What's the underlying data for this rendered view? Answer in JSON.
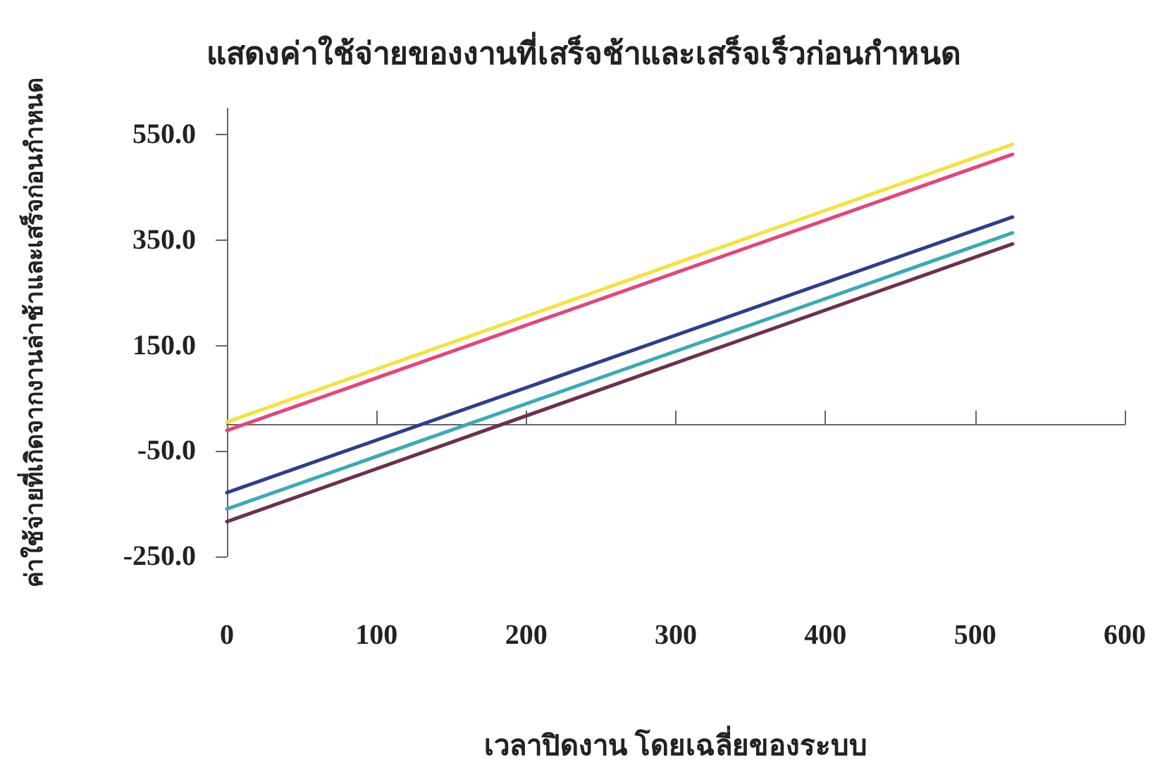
{
  "chart_data": {
    "type": "line",
    "title": "แสดงค่าใช้จ่ายของงานที่เสร็จช้าและเสร็จเร็วก่อนกำหนด",
    "xlabel": "เวลาปิดงาน โดยเฉลี่ยของระบบ",
    "ylabel": "ค่าใช้จ่ายที่เกิดจากงานล่าช้าและเสร็จก่อนกำหนด",
    "x": [
      0,
      525
    ],
    "series": [
      {
        "color": "#f5e23c",
        "values": [
          5,
          532
        ]
      },
      {
        "color": "#e8437a",
        "values": [
          -11,
          513
        ]
      },
      {
        "color": "#2d3e8f",
        "values": [
          -129,
          394
        ]
      },
      {
        "color": "#3aaab8",
        "values": [
          -160,
          364
        ]
      },
      {
        "color": "#6e2f4f",
        "values": [
          -184,
          343
        ]
      }
    ],
    "xlim": [
      0,
      600
    ],
    "xticks": [
      0,
      100,
      200,
      300,
      400,
      500,
      600
    ],
    "ylim": [
      -250,
      600
    ],
    "yticks": [
      {
        "value": -250,
        "label": "-250.0"
      },
      {
        "value": -50,
        "label": "-50.0"
      },
      {
        "value": 150,
        "label": "150.0"
      },
      {
        "value": 350,
        "label": "350.0"
      },
      {
        "value": 550,
        "label": "550.0"
      }
    ],
    "grid": false,
    "marker": "none",
    "line_style": "solid"
  }
}
